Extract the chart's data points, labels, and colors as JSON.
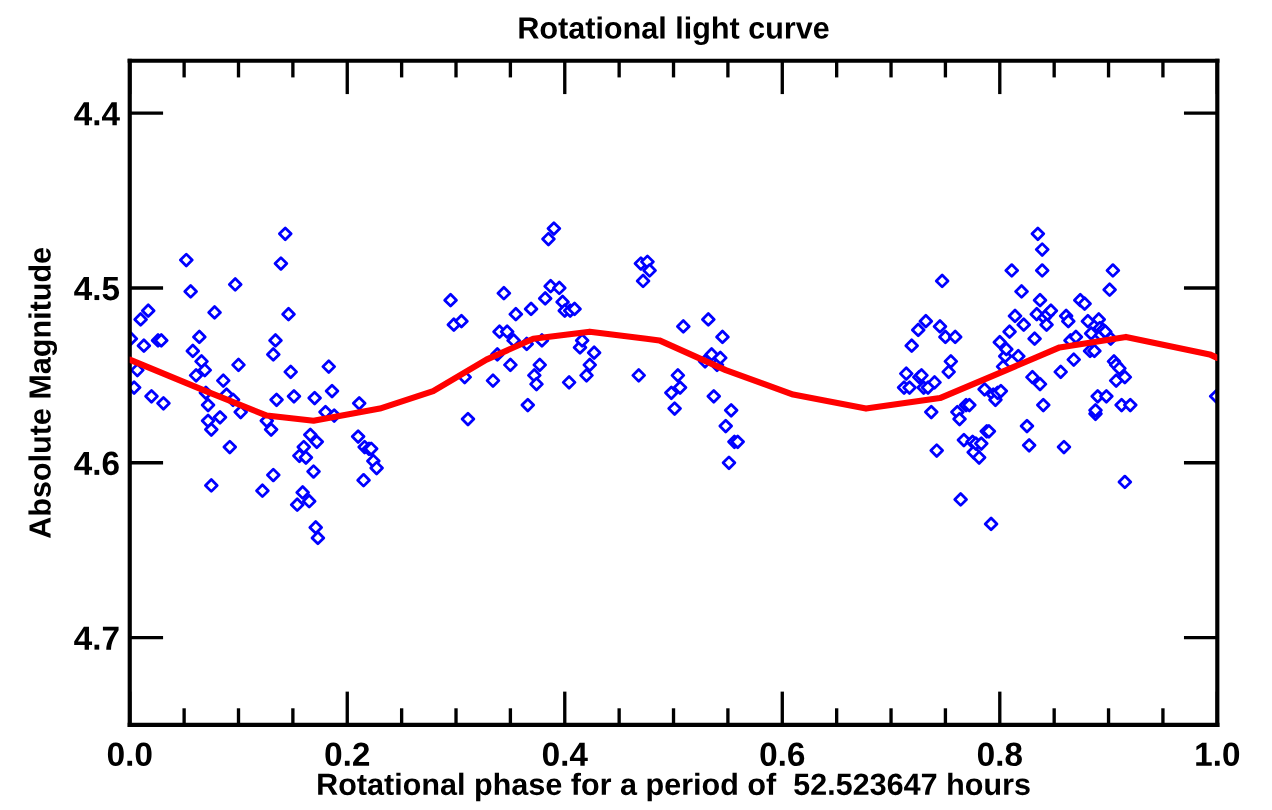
{
  "chart_data": {
    "type": "scatter",
    "title": "Rotational light curve",
    "xlabel": "Rotational phase for a period of  52.523647 hours",
    "ylabel": "Absolute Magnitude",
    "xlim": [
      0.0,
      1.0
    ],
    "ylim": [
      4.75,
      4.37
    ],
    "xticks": [
      {
        "value": 0.0,
        "label": "0.0"
      },
      {
        "value": 0.05,
        "label": null
      },
      {
        "value": 0.1,
        "label": null
      },
      {
        "value": 0.15,
        "label": null
      },
      {
        "value": 0.2,
        "label": "0.2"
      },
      {
        "value": 0.25,
        "label": null
      },
      {
        "value": 0.3,
        "label": null
      },
      {
        "value": 0.35,
        "label": null
      },
      {
        "value": 0.4,
        "label": "0.4"
      },
      {
        "value": 0.45,
        "label": null
      },
      {
        "value": 0.5,
        "label": null
      },
      {
        "value": 0.55,
        "label": null
      },
      {
        "value": 0.6,
        "label": "0.6"
      },
      {
        "value": 0.65,
        "label": null
      },
      {
        "value": 0.7,
        "label": null
      },
      {
        "value": 0.75,
        "label": null
      },
      {
        "value": 0.8,
        "label": "0.8"
      },
      {
        "value": 0.85,
        "label": null
      },
      {
        "value": 0.9,
        "label": null
      },
      {
        "value": 0.95,
        "label": null
      },
      {
        "value": 1.0,
        "label": "1.0"
      }
    ],
    "yticks": [
      4.4,
      4.5,
      4.6,
      4.7
    ],
    "grid": false,
    "legend": false,
    "series": [
      {
        "type": "scatter",
        "color": "#0000ff",
        "marker": "diamond",
        "x": [
          0.001,
          0.004,
          0.007,
          0.01,
          0.013,
          0.017,
          0.02,
          0.026,
          0.029,
          0.031,
          0.052,
          0.056,
          0.058,
          0.061,
          0.064,
          0.066,
          0.069,
          0.07,
          0.072,
          0.072,
          0.075,
          0.075,
          0.078,
          0.083,
          0.086,
          0.089,
          0.092,
          0.095,
          0.097,
          0.1,
          0.102,
          0.122,
          0.126,
          0.13,
          0.132,
          0.132,
          0.134,
          0.135,
          0.139,
          0.143,
          0.146,
          0.148,
          0.151,
          0.154,
          0.156,
          0.159,
          0.16,
          0.162,
          0.165,
          0.166,
          0.169,
          0.17,
          0.171,
          0.173,
          0.172,
          0.18,
          0.183,
          0.186,
          0.188,
          0.21,
          0.211,
          0.215,
          0.216,
          0.22,
          0.222,
          0.224,
          0.227,
          0.295,
          0.298,
          0.305,
          0.308,
          0.311,
          0.334,
          0.338,
          0.34,
          0.344,
          0.347,
          0.35,
          0.353,
          0.355,
          0.365,
          0.366,
          0.369,
          0.372,
          0.374,
          0.377,
          0.379,
          0.382,
          0.385,
          0.387,
          0.39,
          0.395,
          0.398,
          0.4,
          0.404,
          0.405,
          0.409,
          0.414,
          0.416,
          0.42,
          0.423,
          0.427,
          0.468,
          0.47,
          0.472,
          0.476,
          0.478,
          0.498,
          0.501,
          0.504,
          0.506,
          0.509,
          0.529,
          0.532,
          0.535,
          0.537,
          0.54,
          0.543,
          0.545,
          0.548,
          0.551,
          0.553,
          0.556,
          0.559,
          0.712,
          0.714,
          0.717,
          0.719,
          0.725,
          0.726,
          0.728,
          0.73,
          0.732,
          0.734,
          0.737,
          0.74,
          0.742,
          0.745,
          0.747,
          0.75,
          0.753,
          0.755,
          0.759,
          0.761,
          0.763,
          0.764,
          0.767,
          0.769,
          0.772,
          0.775,
          0.776,
          0.778,
          0.781,
          0.783,
          0.786,
          0.788,
          0.79,
          0.792,
          0.794,
          0.796,
          0.798,
          0.8,
          0.801,
          0.803,
          0.805,
          0.806,
          0.809,
          0.811,
          0.814,
          0.817,
          0.82,
          0.822,
          0.825,
          0.827,
          0.83,
          0.832,
          0.834,
          0.835,
          0.837,
          0.837,
          0.839,
          0.839,
          0.84,
          0.841,
          0.843,
          0.844,
          0.847,
          0.856,
          0.859,
          0.861,
          0.863,
          0.865,
          0.868,
          0.87,
          0.874,
          0.878,
          0.881,
          0.883,
          0.884,
          0.887,
          0.888,
          0.888,
          0.89,
          0.891,
          0.892,
          0.893,
          0.895,
          0.897,
          0.898,
          0.901,
          0.902,
          0.904,
          0.905,
          0.907,
          0.91,
          0.907,
          0.912,
          0.915,
          0.915,
          0.92,
          0.999
        ],
        "values": [
          4.529,
          4.557,
          4.547,
          4.518,
          4.533,
          4.513,
          4.562,
          4.53,
          4.53,
          4.566,
          4.484,
          4.502,
          4.536,
          4.55,
          4.528,
          4.542,
          4.547,
          4.56,
          4.567,
          4.576,
          4.581,
          4.613,
          4.514,
          4.574,
          4.553,
          4.561,
          4.591,
          4.564,
          4.498,
          4.544,
          4.571,
          4.616,
          4.576,
          4.581,
          4.607,
          4.538,
          4.53,
          4.564,
          4.486,
          4.469,
          4.515,
          4.548,
          4.562,
          4.624,
          4.596,
          4.617,
          4.591,
          4.597,
          4.622,
          4.584,
          4.605,
          4.563,
          4.637,
          4.643,
          4.588,
          4.571,
          4.545,
          4.559,
          4.573,
          4.585,
          4.566,
          4.61,
          4.591,
          4.592,
          4.592,
          4.599,
          4.603,
          4.507,
          4.521,
          4.519,
          4.551,
          4.575,
          4.553,
          4.538,
          4.525,
          4.503,
          4.525,
          4.544,
          4.53,
          4.515,
          4.532,
          4.567,
          4.512,
          4.55,
          4.555,
          4.544,
          4.53,
          4.506,
          4.472,
          4.499,
          4.466,
          4.5,
          4.508,
          4.513,
          4.554,
          4.513,
          4.512,
          4.534,
          4.53,
          4.55,
          4.544,
          4.537,
          4.55,
          4.486,
          4.496,
          4.485,
          4.49,
          4.56,
          4.569,
          4.55,
          4.557,
          4.522,
          4.542,
          4.518,
          4.538,
          4.562,
          4.544,
          4.54,
          4.528,
          4.579,
          4.6,
          4.57,
          4.588,
          4.588,
          4.557,
          4.549,
          4.557,
          4.533,
          4.524,
          4.551,
          4.55,
          4.557,
          4.519,
          4.557,
          4.571,
          4.554,
          4.593,
          4.522,
          4.496,
          4.528,
          4.548,
          4.542,
          4.528,
          4.571,
          4.575,
          4.621,
          4.587,
          4.567,
          4.567,
          4.588,
          4.594,
          4.589,
          4.597,
          4.589,
          4.558,
          4.582,
          4.582,
          4.635,
          4.561,
          4.564,
          4.56,
          4.531,
          4.559,
          4.545,
          4.539,
          4.535,
          4.525,
          4.49,
          4.516,
          4.539,
          4.502,
          4.521,
          4.579,
          4.59,
          4.551,
          4.529,
          4.515,
          4.469,
          4.555,
          4.507,
          4.478,
          4.49,
          4.567,
          4.517,
          4.521,
          4.515,
          4.513,
          4.548,
          4.591,
          4.516,
          4.519,
          4.53,
          4.541,
          4.528,
          4.507,
          4.509,
          4.519,
          4.536,
          4.526,
          4.536,
          4.572,
          4.57,
          4.562,
          4.518,
          4.523,
          4.527,
          4.524,
          4.525,
          4.562,
          4.501,
          4.529,
          4.49,
          4.542,
          4.544,
          4.546,
          4.553,
          4.567,
          4.551,
          4.611,
          4.567,
          4.562
        ]
      },
      {
        "type": "line",
        "color": "#ff0000",
        "marker": "none",
        "line_style": "solid",
        "x": [
          0.0,
          0.07,
          0.126,
          0.169,
          0.23,
          0.279,
          0.328,
          0.371,
          0.423,
          0.475,
          0.487,
          0.548,
          0.61,
          0.677,
          0.745,
          0.806,
          0.855,
          0.916,
          0.993,
          1.0
        ],
        "values": [
          4.541,
          4.559,
          4.573,
          4.576,
          4.569,
          4.559,
          4.541,
          4.529,
          4.525,
          4.529,
          4.53,
          4.547,
          4.561,
          4.569,
          4.563,
          4.547,
          4.534,
          4.528,
          4.538,
          4.54
        ]
      }
    ]
  }
}
